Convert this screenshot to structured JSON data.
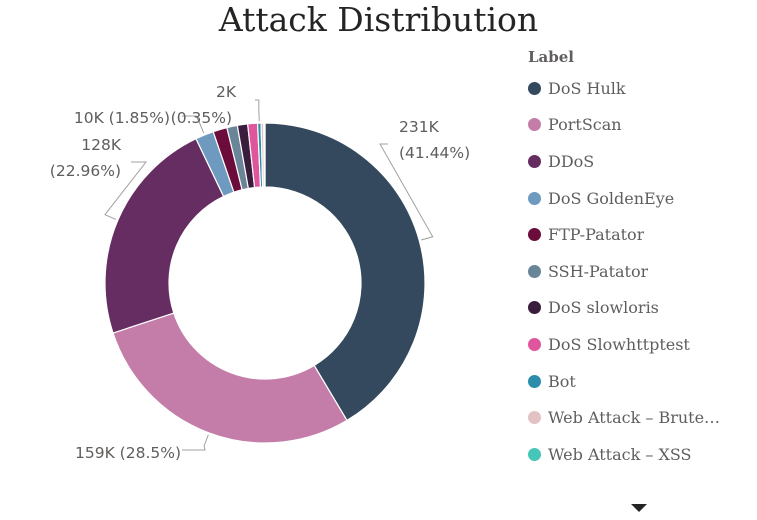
{
  "chart_data": {
    "type": "pie",
    "title": "Attack Distribution",
    "legend": {
      "title": "Label",
      "placement": "right"
    },
    "slices": [
      {
        "label": "DoS Hulk",
        "value": 231,
        "percent": 41.44,
        "color": "#34495E",
        "display": "231K\n(41.44%)"
      },
      {
        "label": "PortScan",
        "value": 159,
        "percent": 28.5,
        "color": "#C47DA8",
        "display": "159K (28.5%)"
      },
      {
        "label": "DDoS",
        "value": 128,
        "percent": 22.96,
        "color": "#662D63",
        "display": "128K\n(22.96%)"
      },
      {
        "label": "DoS GoldenEye",
        "value": 10,
        "percent": 1.85,
        "color": "#6E9AC0",
        "display": "10K (1.85%)"
      },
      {
        "label": "FTP-Patator",
        "value": 8,
        "percent": 1.42,
        "color": "#6B0C3A",
        "display": ""
      },
      {
        "label": "SSH-Patator",
        "value": 6,
        "percent": 1.06,
        "color": "#6A8498",
        "display": ""
      },
      {
        "label": "DoS slowloris",
        "value": 6,
        "percent": 1.04,
        "color": "#3A1D3D",
        "display": ""
      },
      {
        "label": "DoS Slowhttptest",
        "value": 6,
        "percent": 0.99,
        "color": "#E0569C",
        "display": ""
      },
      {
        "label": "Bot",
        "value": 2,
        "percent": 0.35,
        "color": "#2C8EAB",
        "display": "2K\n(0.35%)"
      },
      {
        "label": "Web Attack – Brute Force",
        "value": 1.5,
        "percent": 0.27,
        "color": "#E2C2C4",
        "display": ""
      },
      {
        "label": "Web Attack – XSS",
        "value": 0.7,
        "percent": 0.12,
        "color": "#46C6B8",
        "display": ""
      }
    ]
  },
  "legend_more_icon": "triangle-down-icon"
}
